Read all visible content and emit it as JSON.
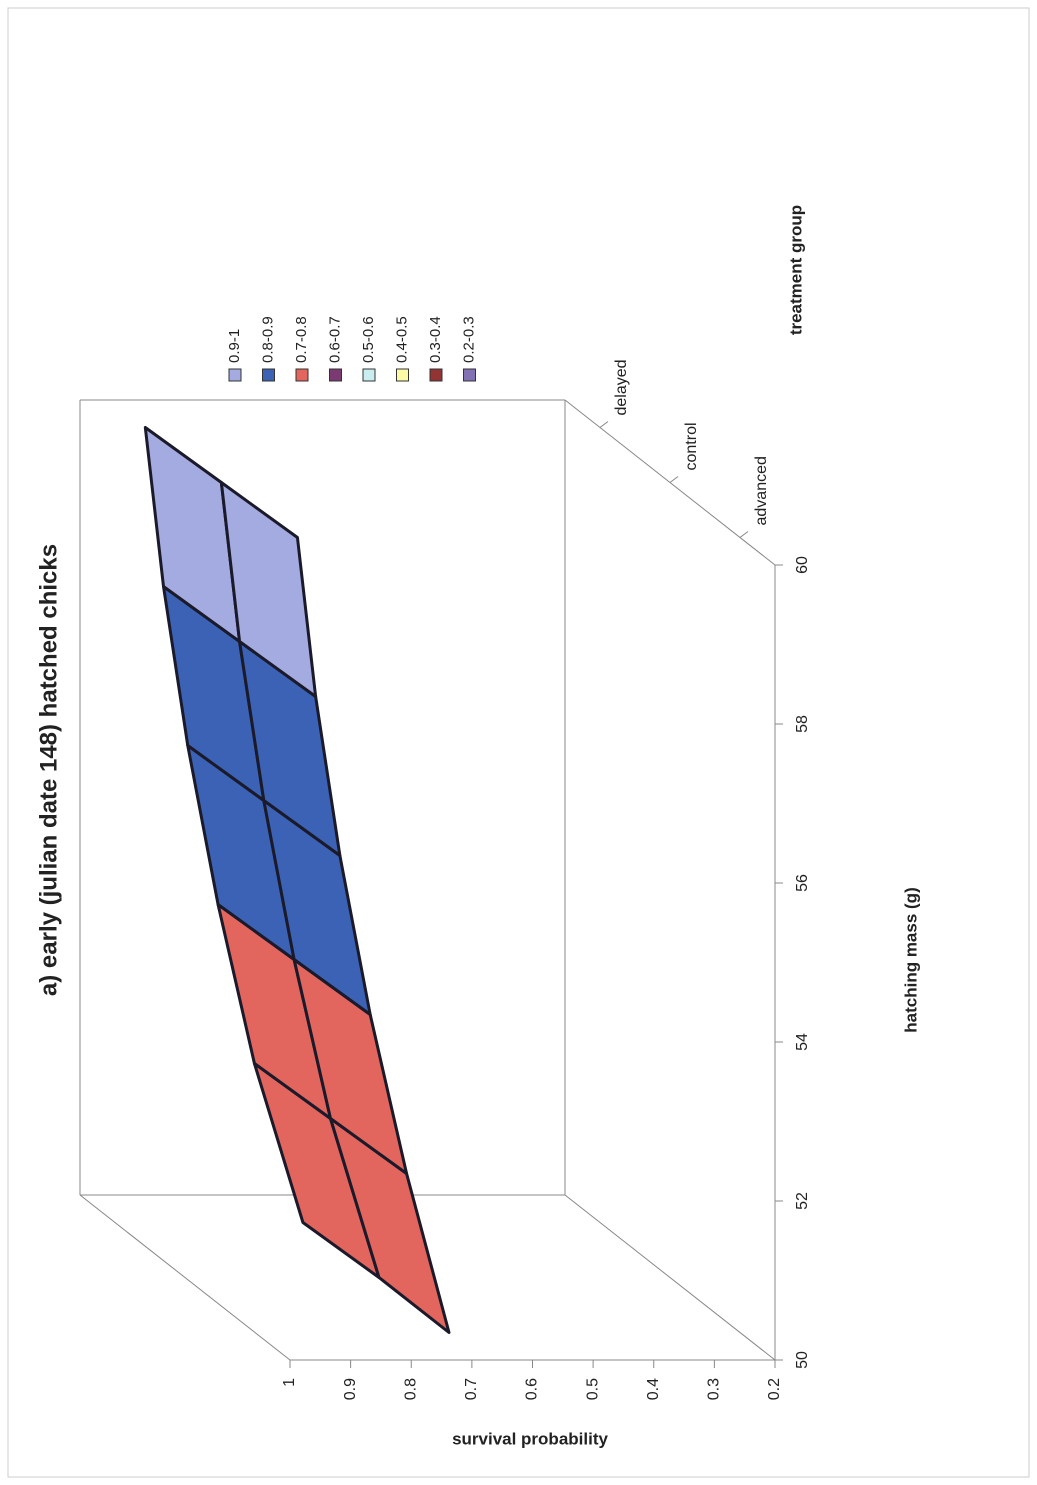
{
  "chart_data": {
    "type": "surface",
    "title": "a) early (julian date 148) hatched chicks",
    "x_label": "hatching mass (g)",
    "y_label": "survival probability",
    "z_label": "treatment group",
    "x": [
      50,
      52,
      54,
      56,
      58,
      60
    ],
    "xlim": [
      50,
      60
    ],
    "xticks": [
      50,
      52,
      54,
      56,
      58,
      60
    ],
    "ylim": [
      0.2,
      1
    ],
    "yticks": [
      0.2,
      0.3,
      0.4,
      0.5,
      0.6,
      0.7,
      0.8,
      0.9,
      1
    ],
    "series": [
      {
        "name": "advanced",
        "values": [
          0.68,
          0.75,
          0.81,
          0.86,
          0.9,
          0.93
        ]
      },
      {
        "name": "control",
        "values": [
          0.68,
          0.76,
          0.82,
          0.87,
          0.91,
          0.94
        ]
      },
      {
        "name": "delayed",
        "values": [
          0.69,
          0.77,
          0.83,
          0.88,
          0.92,
          0.95
        ]
      }
    ],
    "legend": [
      {
        "name": "0.9-1",
        "color": "#a4abe0"
      },
      {
        "name": "0.8-0.9",
        "color": "#3b62b5"
      },
      {
        "name": "0.7-0.8",
        "color": "#e2655e"
      },
      {
        "name": "0.6-0.7",
        "color": "#7b3a72"
      },
      {
        "name": "0.5-0.6",
        "color": "#c9eef0"
      },
      {
        "name": "0.4-0.5",
        "color": "#fbfba6"
      },
      {
        "name": "0.3-0.4",
        "color": "#933434"
      },
      {
        "name": "0.2-0.3",
        "color": "#8272b3"
      }
    ]
  }
}
